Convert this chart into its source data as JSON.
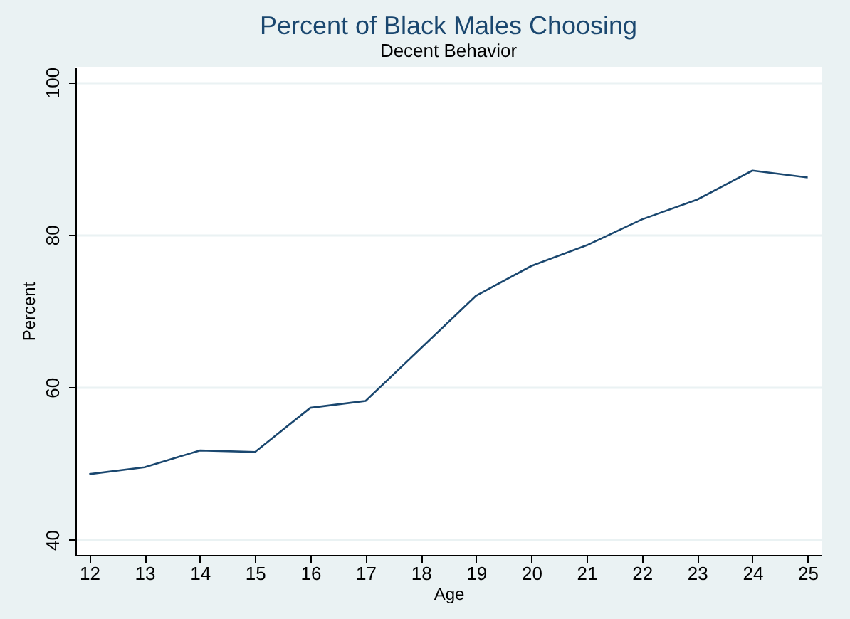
{
  "chart_data": {
    "type": "line",
    "title": "Percent of Black Males Choosing",
    "subtitle": "Decent Behavior",
    "xlabel": "Age",
    "ylabel": "Percent",
    "x": [
      12,
      13,
      14,
      15,
      16,
      17,
      18,
      19,
      20,
      21,
      22,
      23,
      24,
      25
    ],
    "series": [
      {
        "color": "#1a476f",
        "values": [
          48.6,
          49.5,
          51.7,
          51.5,
          57.3,
          58.2,
          65.1,
          72.0,
          75.9,
          78.6,
          82.0,
          84.6,
          88.4,
          87.5
        ]
      }
    ],
    "xlim": [
      11.75,
      25.25
    ],
    "xticks": [
      12,
      13,
      14,
      15,
      16,
      17,
      18,
      19,
      20,
      21,
      22,
      23,
      24,
      25
    ],
    "ylim": [
      38,
      102
    ],
    "yticks": [
      40,
      60,
      80,
      100
    ],
    "grid": "y",
    "marker": "none",
    "line_style": "solid"
  }
}
